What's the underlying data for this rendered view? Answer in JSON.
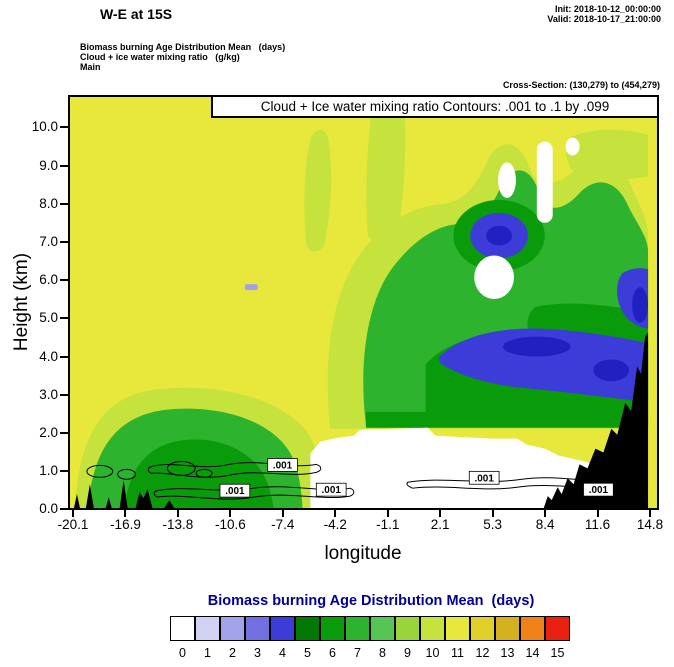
{
  "header": {
    "title": "W-E at 15S",
    "init": "Init: 2018-10-12_00:00:00",
    "valid": "Valid: 2018-10-17_21:00:00",
    "legend_lines": [
      "Biomass burning Age Distribution Mean   (days)",
      "Cloud + ice water mixing ratio   (g/kg)",
      "Main"
    ],
    "cross_section": "Cross-Section: (130,279) to (454,279)"
  },
  "plot": {
    "inner_title": "Cloud + Ice water mixing ratio Contours: .001 to .1 by .099",
    "xlabel": "longitude",
    "ylabel": "Height (km)",
    "x_ticks": [
      "-20.1",
      "-16.9",
      "-13.8",
      "-10.6",
      "-7.4",
      "-4.2",
      "-1.1",
      "2.1",
      "5.3",
      "8.4",
      "11.6",
      "14.8"
    ],
    "y_ticks": [
      "0.0",
      "1.0",
      "2.0",
      "3.0",
      "4.0",
      "5.0",
      "6.0",
      "7.0",
      "8.0",
      "9.0",
      "10.0"
    ],
    "contour_label": ".001"
  },
  "colorbar": {
    "title": "Biomass burning Age Distribution Mean  (days)",
    "title_color": "#000099",
    "tick_labels": [
      "0",
      "1",
      "2",
      "3",
      "4",
      "5",
      "6",
      "7",
      "8",
      "9",
      "10",
      "11",
      "12",
      "13",
      "14",
      "15"
    ],
    "colors": [
      "#ffffff",
      "#d2d2f4",
      "#a2a2ea",
      "#7070e0",
      "#3c3cd8",
      "#047804",
      "#0a9b0a",
      "#2eb32e",
      "#55c555",
      "#97d53b",
      "#c6e23c",
      "#e8e83c",
      "#e0d02c",
      "#d4af1e",
      "#f08018",
      "#e82010"
    ]
  },
  "colors_extra": {
    "deep_blue": "#2121c2",
    "terrain": "#000000"
  },
  "chart_data": {
    "type": "heatmap",
    "title": "W-E at 15S",
    "xlabel": "longitude",
    "ylabel": "Height (km)",
    "xlim": [
      -20.1,
      14.8
    ],
    "ylim": [
      0,
      10.8
    ],
    "x": [
      -20.1,
      -16.9,
      -13.8,
      -10.6,
      -7.4,
      -4.2,
      -1.1,
      2.1,
      5.3,
      8.4,
      11.6,
      14.8
    ],
    "y_km": [
      0,
      1,
      2,
      3,
      4,
      5,
      6,
      7,
      8,
      9,
      10
    ],
    "fill_variable": "Biomass burning Age Distribution Mean (days)",
    "fill_levels": [
      0,
      1,
      2,
      3,
      4,
      5,
      6,
      7,
      8,
      9,
      10,
      11,
      12,
      13,
      14,
      15
    ],
    "fill_colors": [
      "#ffffff",
      "#d2d2f4",
      "#a2a2ea",
      "#7070e0",
      "#3c3cd8",
      "#047804",
      "#0a9b0a",
      "#2eb32e",
      "#55c555",
      "#97d53b",
      "#c6e23c",
      "#e8e83c",
      "#e0d02c",
      "#d4af1e",
      "#f08018",
      "#e82010"
    ],
    "values_estimated_age_days_rows_y0_to_y10": [
      [
        11,
        9,
        8,
        8,
        11,
        11,
        0,
        0,
        0,
        0,
        0,
        null
      ],
      [
        11,
        8,
        6,
        7,
        8,
        11,
        0,
        0,
        0,
        0,
        0,
        null
      ],
      [
        10,
        9,
        8,
        8,
        9,
        11,
        0,
        0,
        0,
        0,
        0,
        null
      ],
      [
        11,
        10,
        9,
        9,
        10,
        10,
        8,
        6,
        6,
        5,
        4,
        6
      ],
      [
        11,
        11,
        11,
        10,
        11,
        10,
        8,
        5,
        4,
        4,
        4,
        3
      ],
      [
        11,
        11,
        11,
        11,
        11,
        10,
        8,
        6,
        4,
        4,
        3,
        4
      ],
      [
        11,
        11,
        11,
        11,
        2,
        10,
        8,
        8,
        4,
        0,
        8,
        6
      ],
      [
        11,
        11,
        11,
        11,
        11,
        10,
        10,
        9,
        8,
        8,
        8,
        8
      ],
      [
        11,
        11,
        11,
        11,
        11,
        11,
        10,
        10,
        11,
        10,
        0,
        10
      ],
      [
        11,
        11,
        11,
        11,
        11,
        10,
        11,
        10,
        11,
        11,
        10,
        11
      ],
      [
        11,
        11,
        11,
        11,
        11,
        10,
        11,
        10,
        11,
        11,
        11,
        10
      ]
    ],
    "values_note": "Estimated from fill shading at each (lon tick, km) grid point; null = inside black terrain silhouette.",
    "overlay_contours": {
      "variable": "Cloud + Ice water mixing ratio (g/kg)",
      "levels": [
        0.001,
        0.1
      ],
      "spec": "Contours: .001 to .1 by .099",
      "label": ".001",
      "location": "Thin .001 contour chains confined below ~1.2 km between lon -17 and 13"
    },
    "terrain": "Black silhouette rising along right edge (lon ~13 to 14.8, up to ~2.2 km) plus small peaks near lon -20 to -16",
    "legend_position": "bottom",
    "grid": false,
    "colorbar_labels": [
      "0",
      "1",
      "2",
      "3",
      "4",
      "5",
      "6",
      "7",
      "8",
      "9",
      "10",
      "11",
      "12",
      "13",
      "14",
      "15"
    ]
  }
}
